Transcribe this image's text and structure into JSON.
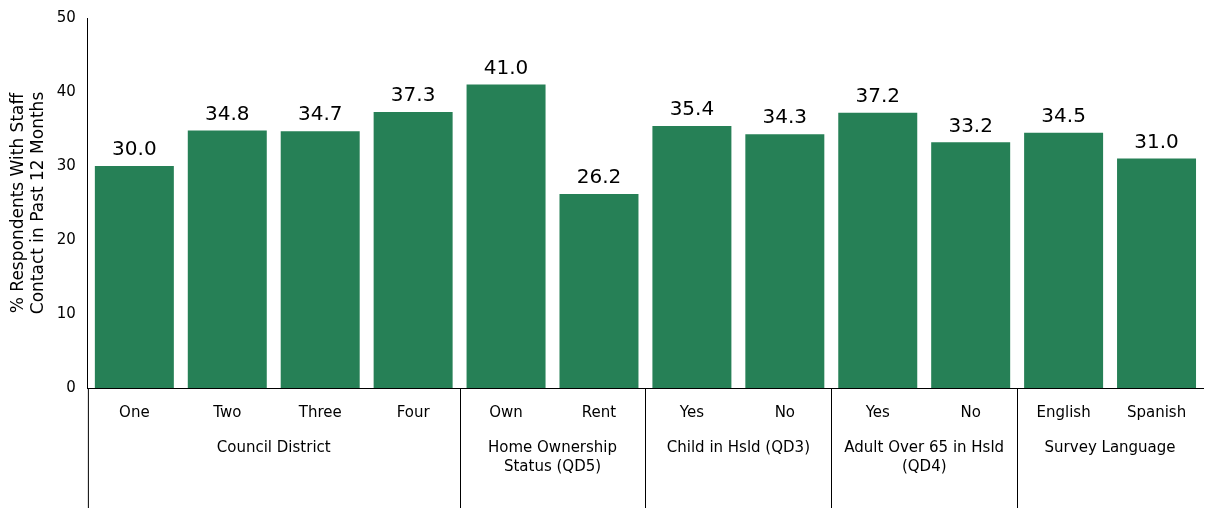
{
  "chart_data": {
    "type": "bar",
    "categories": [
      "One",
      "Two",
      "Three",
      "Four",
      "Own",
      "Rent",
      "Yes",
      "No",
      "Yes",
      "No",
      "English",
      "Spanish"
    ],
    "values": [
      30.0,
      34.8,
      34.7,
      37.3,
      41.0,
      26.2,
      35.4,
      34.3,
      37.2,
      33.2,
      34.5,
      31.0
    ],
    "color": "#268056",
    "ylabel": "% Respondents With Staff Contact in Past 12 Months",
    "ylim": [
      0,
      50
    ],
    "yticks": [
      0,
      10,
      20,
      30,
      40,
      50
    ],
    "grid": false,
    "legend": false,
    "value_labels": [
      "30.0",
      "34.8",
      "34.7",
      "37.3",
      "41.0",
      "26.2",
      "35.4",
      "34.3",
      "37.2",
      "33.2",
      "34.5",
      "31.0"
    ],
    "annotations": [
      "Council District",
      "Home Ownership Status (QD5)",
      "Child in Hsld (QD3)",
      "Adult Over 65 in Hsld (QD4)",
      "Survey Language"
    ]
  }
}
